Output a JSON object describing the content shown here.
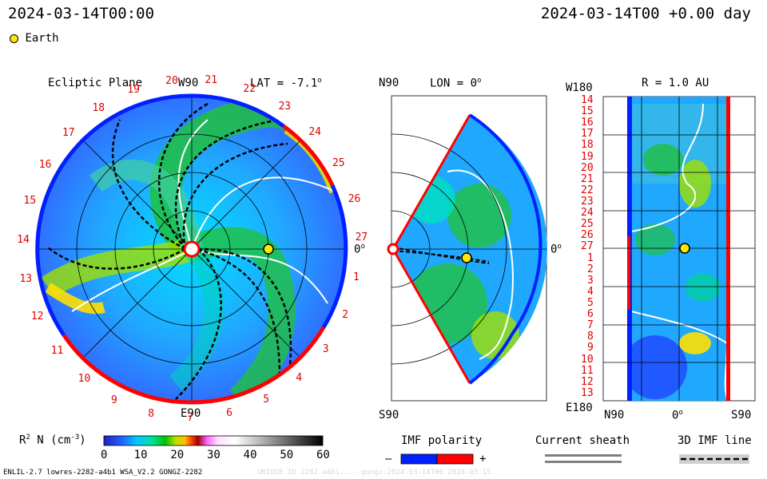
{
  "header": {
    "left_time": "2024-03-14T00:00",
    "right_time": "2024-03-14T00 +0.00 day",
    "legend_earth": "Earth"
  },
  "ecliptic": {
    "title": "Ecliptic Plane",
    "top_label": "W90",
    "lat_label": "LAT = -7.1",
    "lat_sup": "o",
    "right_label": "0",
    "right_sup": "o",
    "bottom_label": "E90",
    "sectors": [
      "20",
      "21",
      "22",
      "23",
      "24",
      "25",
      "26",
      "27",
      "1",
      "2",
      "3",
      "4",
      "5",
      "6",
      "7",
      "8",
      "9",
      "10",
      "11",
      "12",
      "13",
      "14",
      "15",
      "16",
      "17",
      "18",
      "19"
    ]
  },
  "meridional": {
    "top_label": "N90",
    "lon_label": "LON = 0",
    "lon_sup": "o",
    "right_label": "0",
    "right_sup": "o",
    "bottom_label": "S90"
  },
  "radial": {
    "top_left": "W180",
    "r_label": "R = 1.0 AU",
    "bottom_left": "E180",
    "x_labels": [
      "N90",
      "0",
      "S90"
    ],
    "x_sup": "o",
    "rows": [
      "14",
      "15",
      "16",
      "17",
      "18",
      "19",
      "20",
      "21",
      "22",
      "23",
      "24",
      "25",
      "26",
      "27",
      "1",
      "2",
      "3",
      "4",
      "5",
      "6",
      "7",
      "8",
      "9",
      "10",
      "11",
      "12",
      "13"
    ]
  },
  "colorbar": {
    "label": "R",
    "label_sup": "2",
    "label_rest": " N (cm",
    "label_exp": "-3",
    "label_close": ")",
    "ticks": [
      "0",
      "10",
      "20",
      "30",
      "40",
      "50",
      "60"
    ]
  },
  "imf": {
    "title": "IMF polarity",
    "minus": "–",
    "plus": "+"
  },
  "sheath": {
    "title": "Current sheath"
  },
  "imfline": {
    "title": "3D IMF line"
  },
  "footer": {
    "left": "ENLIL-2.7 lowres-2282-a4b1 WSA_V2.2 GONGZ-2282",
    "right": "UNIQUE ID 2282-a4b1-...-gongz-2024-03-14T00 2024-03-15"
  },
  "colors": {
    "positive": "#ff0000",
    "negative": "#0020ff",
    "earth": "#ffe800",
    "sector_text": "#e00000"
  }
}
